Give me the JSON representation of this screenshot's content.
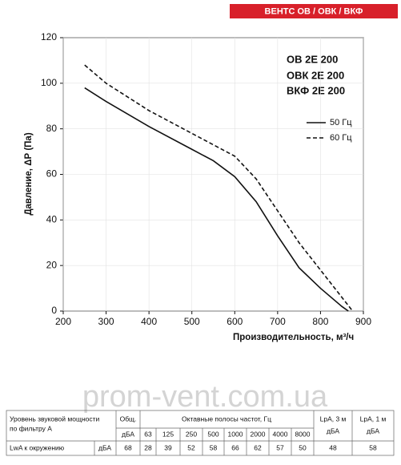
{
  "chart_data": {
    "type": "line",
    "brand": "ВЕНТС ОВ / ОВК / ВКФ",
    "models": [
      "ОВ 2Е 200",
      "ОВК 2Е 200",
      "ВКФ 2Е 200"
    ],
    "xlabel": "Производительность,  м³/ч",
    "ylabel": "Давление, ΔР (Па)",
    "xlim": [
      200,
      900
    ],
    "ylim": [
      0,
      120
    ],
    "xticks": [
      200,
      300,
      400,
      500,
      600,
      700,
      800,
      900
    ],
    "yticks": [
      0,
      20,
      40,
      60,
      80,
      100,
      120
    ],
    "grid": true,
    "series": [
      {
        "name": "50 Гц",
        "color": "#111111",
        "style": "solid",
        "x": [
          250,
          300,
          400,
          500,
          550,
          600,
          650,
          700,
          750,
          800,
          850,
          865
        ],
        "values": [
          98,
          92,
          81,
          71,
          66,
          59,
          48,
          33,
          19,
          10,
          2,
          0
        ]
      },
      {
        "name": "60 Гц",
        "color": "#111111",
        "style": "dashed",
        "x": [
          250,
          300,
          400,
          500,
          600,
          650,
          700,
          750,
          800,
          850,
          875
        ],
        "values": [
          108,
          100,
          88,
          78,
          68,
          58,
          44,
          30,
          18,
          6,
          0
        ]
      }
    ]
  },
  "watermark": "prom-vent.com.ua",
  "table": {
    "header": {
      "label": [
        "Уровень звуковой мощности",
        "по фильтру А"
      ],
      "total": "Общ.",
      "total_unit": "дБА",
      "bands_title": "Октавные полосы частот, Гц",
      "bands": [
        63,
        125,
        250,
        500,
        1000,
        2000,
        4000,
        8000
      ],
      "lpa3": [
        "LpA, 3 м",
        "дБА"
      ],
      "lpa1": [
        "LpA, 1 м",
        "дБА"
      ]
    },
    "row": {
      "label": "LwA к окружению",
      "unit": "дБА",
      "total": 68,
      "bands": [
        28,
        39,
        52,
        58,
        66,
        62,
        57,
        50
      ],
      "lpa3": 48,
      "lpa1": 58
    }
  }
}
